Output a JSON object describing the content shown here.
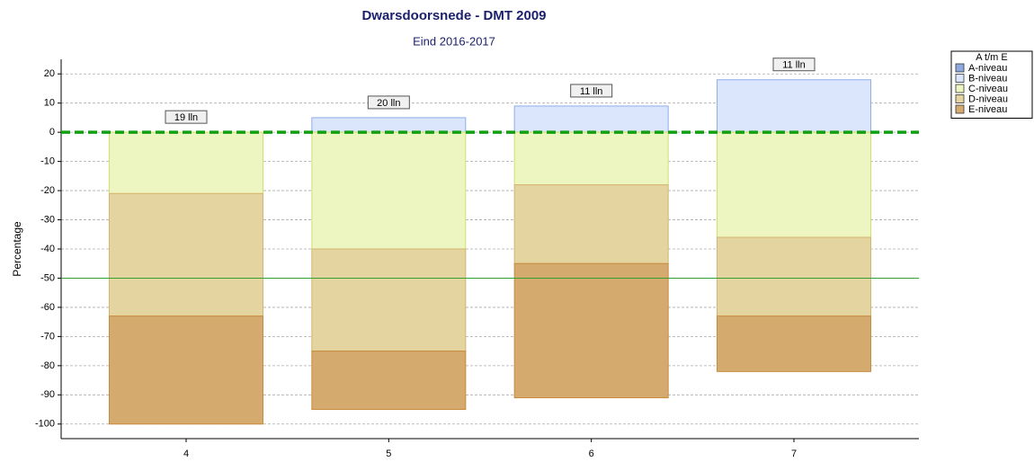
{
  "chart_data": {
    "type": "stacked_bar",
    "title": "Dwarsdoorsnede - DMT 2009",
    "subtitle": "Eind 2016-2017",
    "y_label": "Percentage",
    "categories": [
      "4",
      "5",
      "6",
      "7"
    ],
    "bar_labels": [
      "19 lln",
      "20 lln",
      "11 lln",
      "11 lln"
    ],
    "legend_title": "A t/m E",
    "legend_position": "top-right",
    "series": [
      {
        "name": "A-niveau",
        "color": "#8ea9e0",
        "border": "#5b7cc4",
        "values": [
          0,
          0,
          0,
          0
        ]
      },
      {
        "name": "B-niveau",
        "color": "#dbe5fc",
        "border": "#8eaee9",
        "values": [
          0,
          5,
          9,
          18
        ]
      },
      {
        "name": "C-niveau",
        "color": "#edf5c0",
        "border": "#d5df6c",
        "values": [
          -21,
          -40,
          -18,
          -36
        ]
      },
      {
        "name": "D-niveau",
        "color": "#e4d4a0",
        "border": "#d4b46e",
        "values": [
          -42,
          -35,
          -27,
          -27
        ]
      },
      {
        "name": "E-niveau",
        "color": "#d4aa6e",
        "border": "#c98b3c",
        "values": [
          -37,
          -20,
          -46,
          -19
        ]
      }
    ],
    "reference_lines": [
      {
        "value": 0,
        "color": "#11a011",
        "style": "dashed"
      },
      {
        "value": -50,
        "color": "#33a033",
        "style": "solid"
      }
    ],
    "ylim": [
      -105,
      25
    ],
    "yticks": [
      -100,
      -90,
      -80,
      -70,
      -60,
      -50,
      -40,
      -30,
      -20,
      -10,
      0,
      10,
      20
    ],
    "grid": true
  }
}
